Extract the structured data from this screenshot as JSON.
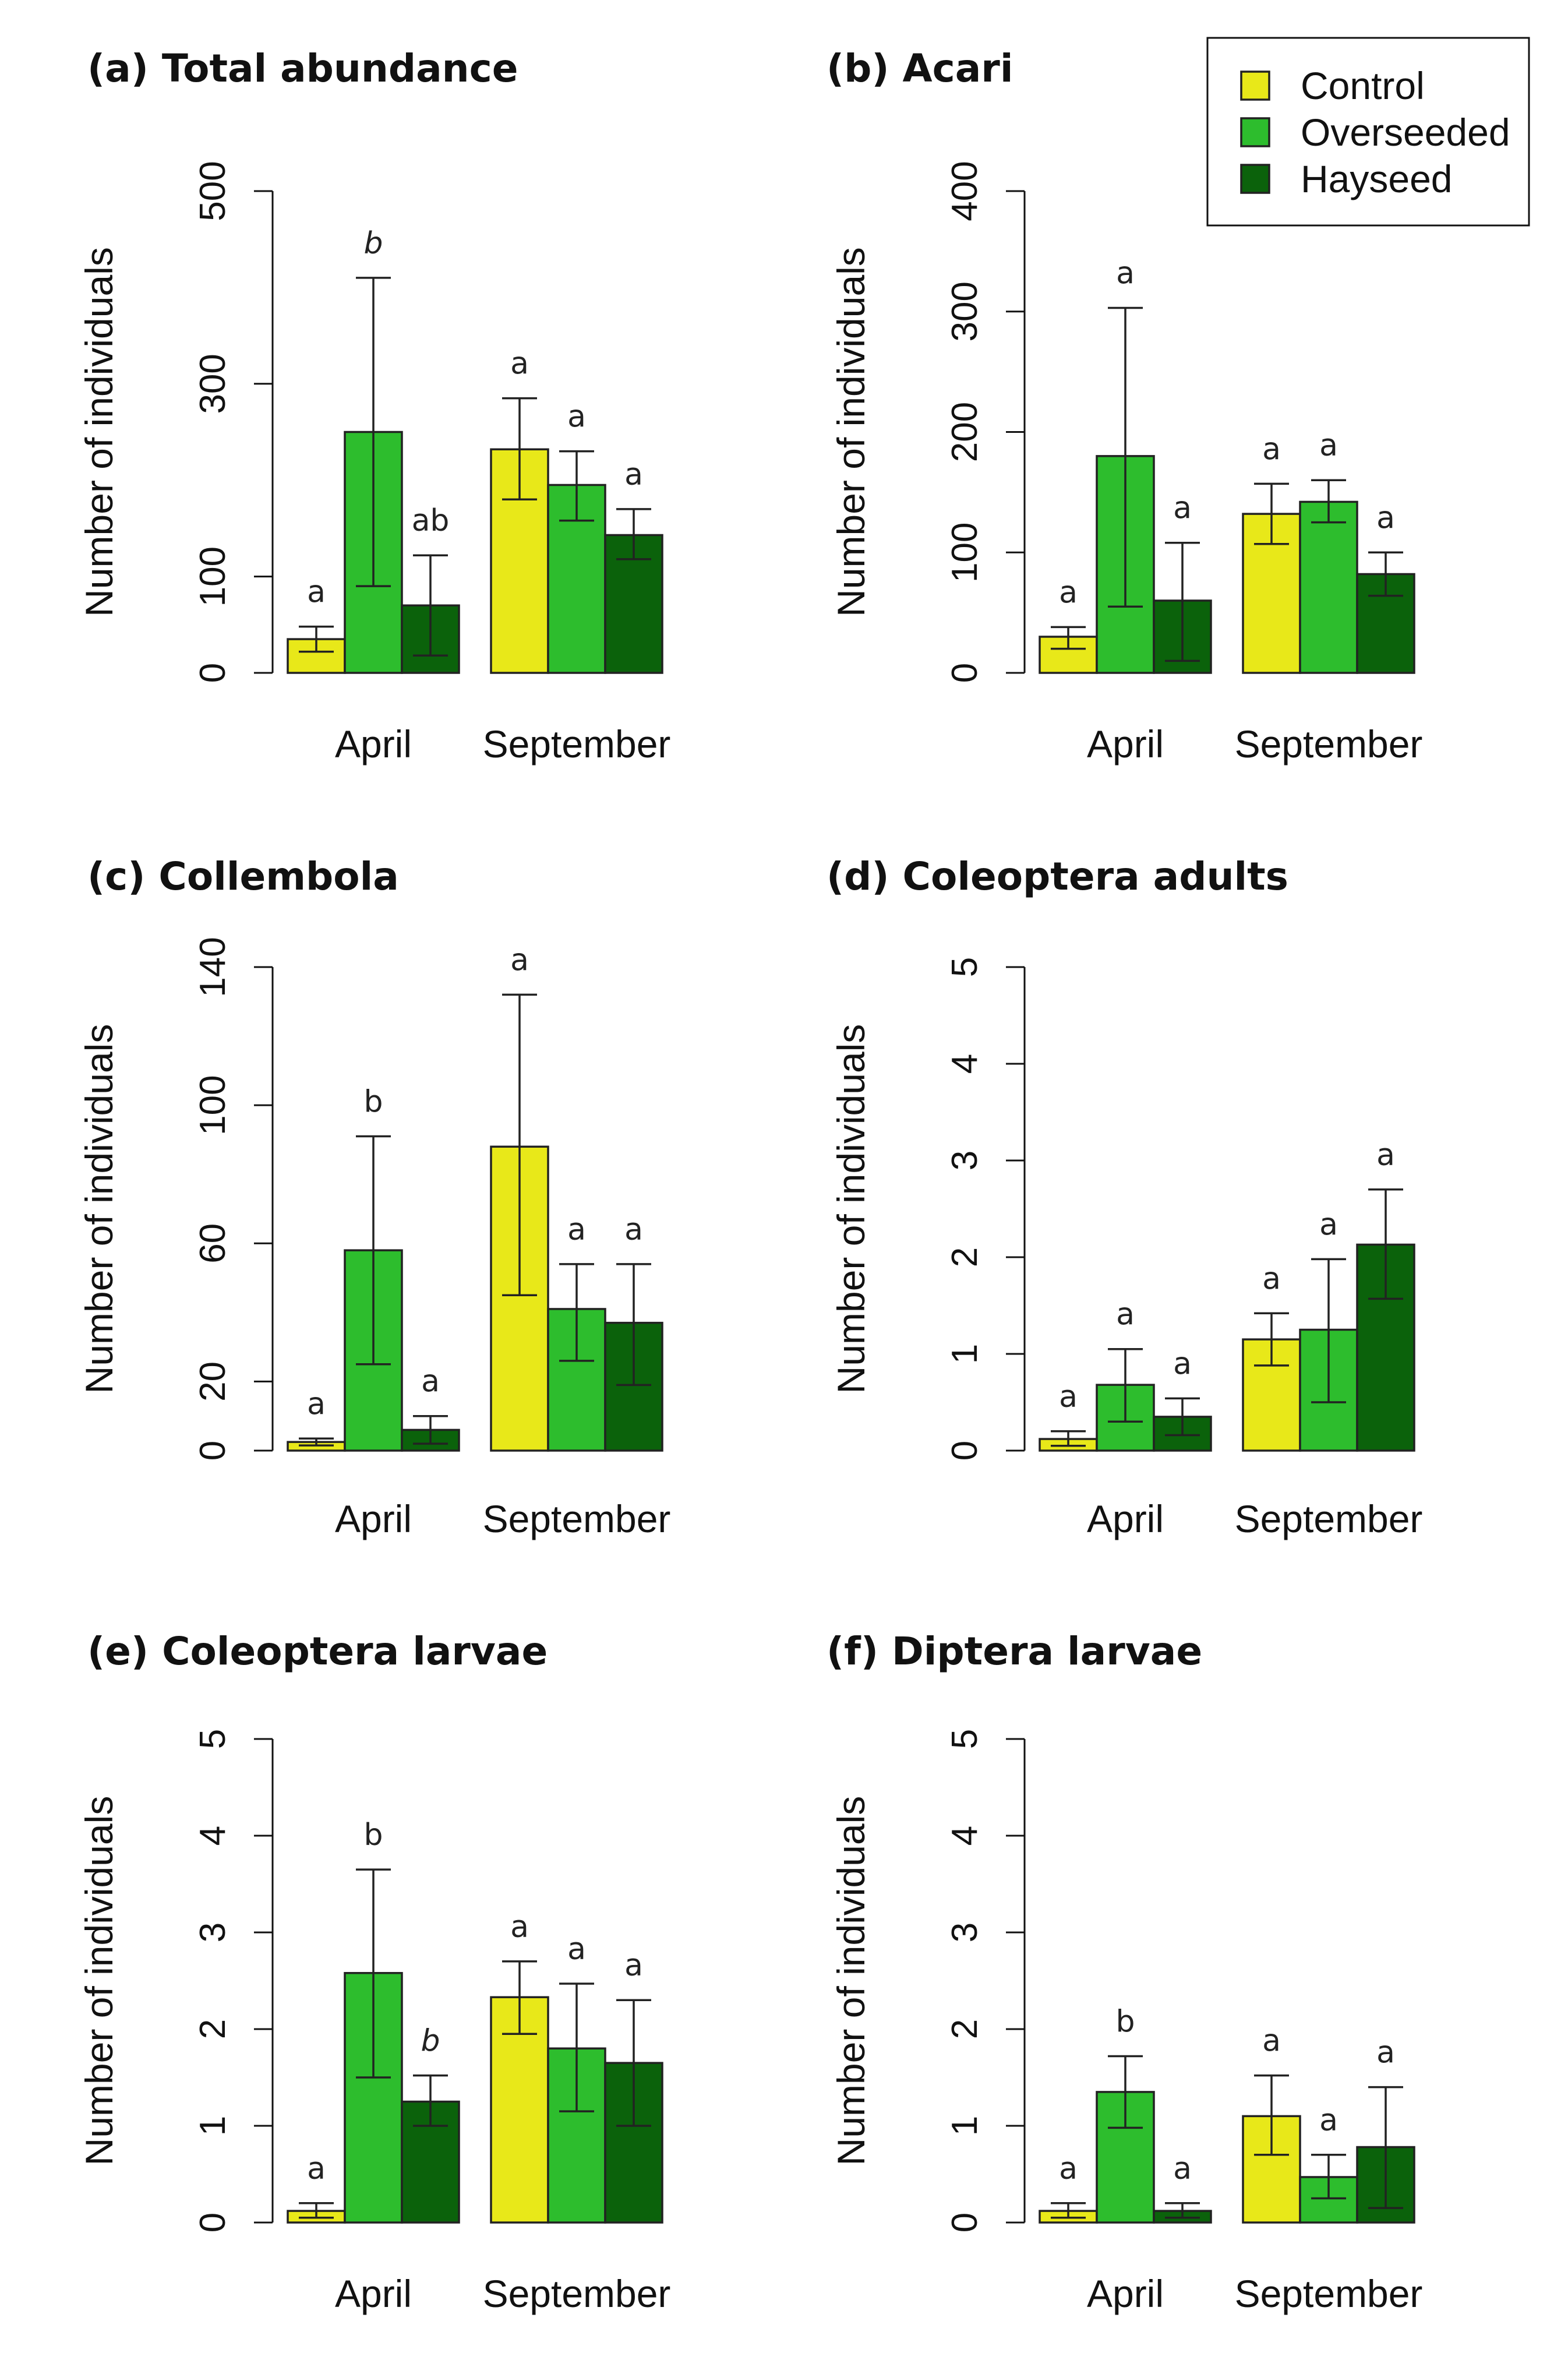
{
  "series_colors": {
    "Control": "#e8e819",
    "Overseeded": "#2dbd2d",
    "Hayseed": "#0b620b"
  },
  "legend": {
    "position": "top-right",
    "entries": [
      "Control",
      "Overseeded",
      "Hayseed"
    ]
  },
  "chart_data": [
    {
      "type": "bar",
      "title": "(a) Total abundance",
      "ylabel": "Number of individuals",
      "ylim": [
        0,
        500
      ],
      "yticks": [
        0,
        100,
        300,
        500
      ],
      "categories": [
        "April",
        "September"
      ],
      "series": [
        {
          "name": "Control",
          "values": [
            35,
            232
          ],
          "err_low": [
            22,
            180
          ],
          "err_high": [
            48,
            285
          ],
          "sig": [
            "a",
            "a"
          ],
          "sig_italic": [
            false,
            false
          ]
        },
        {
          "name": "Overseeded",
          "values": [
            250,
            195
          ],
          "err_low": [
            90,
            158
          ],
          "err_high": [
            410,
            230
          ],
          "sig": [
            "b",
            "a"
          ],
          "sig_italic": [
            true,
            false
          ]
        },
        {
          "name": "Hayseed",
          "values": [
            70,
            143
          ],
          "err_low": [
            18,
            118
          ],
          "err_high": [
            122,
            170
          ],
          "sig": [
            "ab",
            "a"
          ],
          "sig_italic": [
            false,
            false
          ]
        }
      ]
    },
    {
      "type": "bar",
      "title": "(b)  Acari",
      "ylabel": "Number of individuals",
      "ylim": [
        0,
        400
      ],
      "yticks": [
        0,
        100,
        200,
        300,
        400
      ],
      "categories": [
        "April",
        "September"
      ],
      "series": [
        {
          "name": "Control",
          "values": [
            30,
            132
          ],
          "err_low": [
            20,
            107
          ],
          "err_high": [
            38,
            157
          ],
          "sig": [
            "a",
            "a"
          ],
          "sig_italic": [
            false,
            false
          ]
        },
        {
          "name": "Overseeded",
          "values": [
            180,
            142
          ],
          "err_low": [
            55,
            125
          ],
          "err_high": [
            303,
            160
          ],
          "sig": [
            "a",
            "a"
          ],
          "sig_italic": [
            false,
            false
          ]
        },
        {
          "name": "Hayseed",
          "values": [
            60,
            82
          ],
          "err_low": [
            10,
            64
          ],
          "err_high": [
            108,
            100
          ],
          "sig": [
            "a",
            "a"
          ],
          "sig_italic": [
            false,
            false
          ]
        }
      ]
    },
    {
      "type": "bar",
      "title": "(c)  Collembola",
      "ylabel": "Number of individuals",
      "ylim": [
        0,
        140
      ],
      "yticks": [
        0,
        20,
        60,
        100,
        140
      ],
      "categories": [
        "April",
        "September"
      ],
      "series": [
        {
          "name": "Control",
          "values": [
            2.5,
            88
          ],
          "err_low": [
            1.5,
            45
          ],
          "err_high": [
            3.5,
            132
          ],
          "sig": [
            "a",
            "a"
          ],
          "sig_italic": [
            false,
            false
          ]
        },
        {
          "name": "Overseeded",
          "values": [
            58,
            41
          ],
          "err_low": [
            25,
            26
          ],
          "err_high": [
            91,
            54
          ],
          "sig": [
            "b",
            "a"
          ],
          "sig_italic": [
            false,
            false
          ]
        },
        {
          "name": "Hayseed",
          "values": [
            6,
            37
          ],
          "err_low": [
            2,
            19
          ],
          "err_high": [
            10,
            54
          ],
          "sig": [
            "a",
            "a"
          ],
          "sig_italic": [
            false,
            false
          ]
        }
      ]
    },
    {
      "type": "bar",
      "title": "(d) Coleoptera adults",
      "ylabel": "Number of individuals",
      "ylim": [
        0,
        5
      ],
      "yticks": [
        0,
        1,
        2,
        3,
        4,
        5
      ],
      "categories": [
        "April",
        "September"
      ],
      "series": [
        {
          "name": "Control",
          "values": [
            0.12,
            1.15
          ],
          "err_low": [
            0.05,
            0.88
          ],
          "err_high": [
            0.2,
            1.42
          ],
          "sig": [
            "a",
            "a"
          ],
          "sig_italic": [
            false,
            false
          ]
        },
        {
          "name": "Overseeded",
          "values": [
            0.68,
            1.25
          ],
          "err_low": [
            0.3,
            0.5
          ],
          "err_high": [
            1.05,
            1.98
          ],
          "sig": [
            "a",
            "a"
          ],
          "sig_italic": [
            false,
            false
          ]
        },
        {
          "name": "Hayseed",
          "values": [
            0.35,
            2.13
          ],
          "err_low": [
            0.16,
            1.57
          ],
          "err_high": [
            0.54,
            2.7
          ],
          "sig": [
            "a",
            "a"
          ],
          "sig_italic": [
            false,
            false
          ]
        }
      ]
    },
    {
      "type": "bar",
      "title": "(e)  Coleoptera larvae",
      "ylabel": "Number of individuals",
      "ylim": [
        0,
        5
      ],
      "yticks": [
        0,
        1,
        2,
        3,
        4,
        5
      ],
      "categories": [
        "April",
        "September"
      ],
      "series": [
        {
          "name": "Control",
          "values": [
            0.12,
            2.33
          ],
          "err_low": [
            0.05,
            1.95
          ],
          "err_high": [
            0.2,
            2.7
          ],
          "sig": [
            "a",
            "a"
          ],
          "sig_italic": [
            false,
            false
          ]
        },
        {
          "name": "Overseeded",
          "values": [
            2.58,
            1.8
          ],
          "err_low": [
            1.5,
            1.15
          ],
          "err_high": [
            3.65,
            2.47
          ],
          "sig": [
            "b",
            "a"
          ],
          "sig_italic": [
            false,
            false
          ]
        },
        {
          "name": "Hayseed",
          "values": [
            1.25,
            1.65
          ],
          "err_low": [
            1.0,
            1.0
          ],
          "err_high": [
            1.52,
            2.3
          ],
          "sig": [
            "b",
            "a"
          ],
          "sig_italic": [
            true,
            false
          ]
        }
      ]
    },
    {
      "type": "bar",
      "title": "(f) Diptera larvae",
      "ylabel": "Number of individuals",
      "ylim": [
        0,
        5
      ],
      "yticks": [
        0,
        1,
        2,
        3,
        4,
        5
      ],
      "categories": [
        "April",
        "September"
      ],
      "series": [
        {
          "name": "Control",
          "values": [
            0.12,
            1.1
          ],
          "err_low": [
            0.05,
            0.7
          ],
          "err_high": [
            0.2,
            1.52
          ],
          "sig": [
            "a",
            "a"
          ],
          "sig_italic": [
            false,
            false
          ]
        },
        {
          "name": "Overseeded",
          "values": [
            1.35,
            0.47
          ],
          "err_low": [
            0.98,
            0.25
          ],
          "err_high": [
            1.72,
            0.7
          ],
          "sig": [
            "b",
            "a"
          ],
          "sig_italic": [
            false,
            false
          ]
        },
        {
          "name": "Hayseed",
          "values": [
            0.12,
            0.78
          ],
          "err_low": [
            0.05,
            0.15
          ],
          "err_high": [
            0.2,
            1.4
          ],
          "sig": [
            "a",
            "a"
          ],
          "sig_italic": [
            false,
            false
          ]
        }
      ]
    }
  ]
}
